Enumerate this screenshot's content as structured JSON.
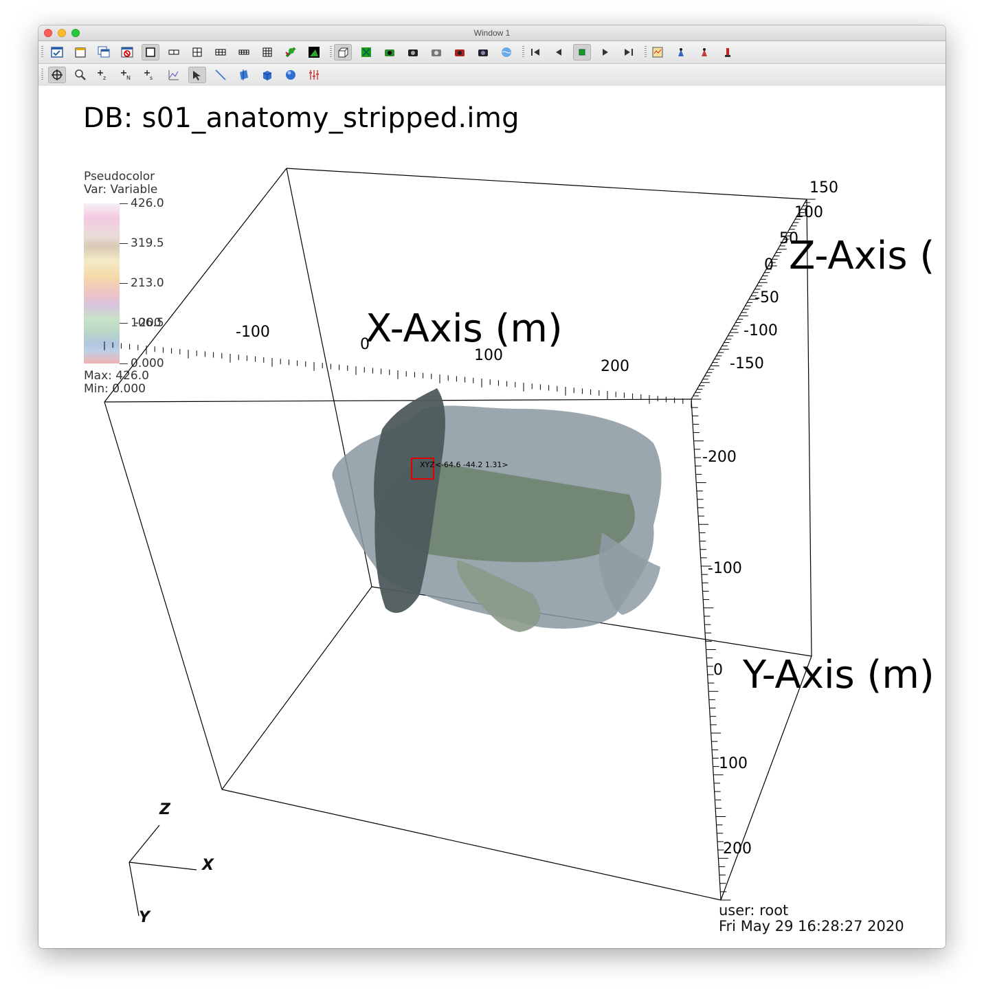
{
  "window": {
    "title": "Window 1"
  },
  "toolbar_top": [
    {
      "name": "active-window-icon",
      "active": false
    },
    {
      "name": "new-window-icon",
      "active": false
    },
    {
      "name": "clone-window-icon",
      "active": false
    },
    {
      "name": "delete-window-icon",
      "active": false
    },
    {
      "name": "layout-1x1-icon",
      "active": true
    },
    {
      "name": "layout-1x2-icon",
      "active": false
    },
    {
      "name": "layout-2x2-icon",
      "active": false
    },
    {
      "name": "layout-2x3-icon",
      "active": false
    },
    {
      "name": "layout-2x4-icon",
      "active": false
    },
    {
      "name": "layout-3x3-icon",
      "active": false
    },
    {
      "name": "lock-view-icon",
      "active": false
    },
    {
      "name": "lock-time-icon",
      "active": false
    },
    {
      "name": "perspective-icon",
      "active": true
    },
    {
      "name": "invert-background-icon",
      "active": false
    },
    {
      "name": "camera-save-view-icon",
      "active": false
    },
    {
      "name": "camera-icon",
      "active": false
    },
    {
      "name": "camera-reset-icon",
      "active": false
    },
    {
      "name": "camera-recenter-icon",
      "active": false
    },
    {
      "name": "camera-undo-icon",
      "active": false
    },
    {
      "name": "spin-globe-icon",
      "active": false
    },
    {
      "name": "first-frame-icon",
      "active": false
    },
    {
      "name": "reverse-play-icon",
      "active": false
    },
    {
      "name": "stop-icon",
      "active": true
    },
    {
      "name": "play-icon",
      "active": false
    },
    {
      "name": "last-frame-icon",
      "active": false
    },
    {
      "name": "copy-attributes-icon",
      "active": false
    },
    {
      "name": "lineout-icon",
      "active": false
    },
    {
      "name": "pick-icon",
      "active": false
    },
    {
      "name": "query-icon",
      "active": false
    }
  ],
  "toolbar_bottom": [
    {
      "name": "navigate-icon",
      "active": true
    },
    {
      "name": "zoom-icon",
      "active": false
    },
    {
      "name": "zone-pick-icon",
      "active": false
    },
    {
      "name": "node-pick-icon",
      "active": false
    },
    {
      "name": "spreadsheet-pick-icon",
      "active": false
    },
    {
      "name": "curve-pick-icon",
      "active": false
    },
    {
      "name": "select-pointer-icon",
      "active": true
    },
    {
      "name": "line-tool-icon",
      "active": false
    },
    {
      "name": "plane-tool-icon",
      "active": false
    },
    {
      "name": "box-tool-icon",
      "active": false
    },
    {
      "name": "sphere-tool-icon",
      "active": false
    },
    {
      "name": "sliders-tool-icon",
      "active": false
    }
  ],
  "toolbar_bottom_labels": [
    "",
    "",
    "+z",
    "+N",
    "+s",
    "",
    "",
    "",
    "",
    "",
    "",
    ""
  ],
  "viz": {
    "db_title": "DB: s01_anatomy_stripped.img",
    "legend": {
      "plot_type": "Pseudocolor",
      "var_label": "Var: Variable",
      "ticks": [
        "426.0",
        "319.5",
        "213.0",
        "106.5",
        "0.000"
      ],
      "overlap_label": "-200",
      "max_label": "Max:  426.0",
      "min_label": "Min:  0.000"
    },
    "axes": {
      "x_title": "X-Axis (m)",
      "y_title": "Y-Axis (m)",
      "z_title": "Z-Axis (",
      "x_ticks": [
        "-100",
        "0",
        "100",
        "200"
      ],
      "z_ticks": [
        "150",
        "100",
        "50",
        "0",
        "-50",
        "-100",
        "-150"
      ],
      "y_ticks": [
        "-200",
        "-100",
        "0",
        "100",
        "200"
      ]
    },
    "pick_label": "XYZ<-64.6 -44.2 1.31>",
    "triad": {
      "x": "X",
      "y": "Y",
      "z": "Z"
    },
    "user": "user: root",
    "timestamp": "Fri May 29 16:28:27 2020"
  }
}
